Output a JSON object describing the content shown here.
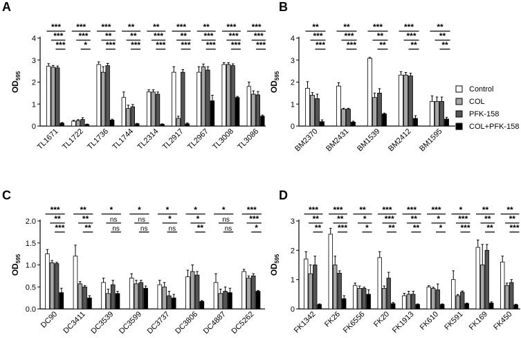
{
  "legend": {
    "colors": [
      "#ffffff",
      "#a6a6a6",
      "#555555",
      "#000000"
    ],
    "labels": [
      "Control",
      "COL",
      "PFK-158",
      "COL+PFK-158"
    ]
  },
  "chart_data": [
    {
      "panel": "A",
      "type": "bar",
      "ylabel": "OD595",
      "ylim": [
        0,
        4
      ],
      "yticks": [
        0,
        1,
        2,
        3,
        4
      ],
      "categories": [
        "TL1671",
        "TL1722",
        "TL1736",
        "TL1744",
        "TL2314",
        "TL2917",
        "TL2967",
        "TL3008",
        "TL3086"
      ],
      "series": [
        {
          "name": "Control",
          "values": [
            2.72,
            0.22,
            2.8,
            1.3,
            1.55,
            2.45,
            2.45,
            2.8,
            1.8
          ],
          "errors": [
            0.12,
            0.04,
            0.12,
            0.25,
            0.1,
            0.25,
            0.25,
            0.08,
            0.2
          ]
        },
        {
          "name": "COL",
          "values": [
            2.68,
            0.25,
            2.45,
            0.8,
            1.55,
            0.35,
            2.7,
            2.8,
            1.45
          ],
          "errors": [
            0.08,
            0.04,
            0.25,
            0.15,
            0.1,
            0.1,
            0.12,
            0.08,
            0.15
          ]
        },
        {
          "name": "PFK-158",
          "values": [
            2.65,
            0.3,
            2.75,
            0.88,
            1.45,
            2.45,
            2.55,
            2.75,
            1.42
          ],
          "errors": [
            0.08,
            0.08,
            0.1,
            0.1,
            0.1,
            0.12,
            0.15,
            0.08,
            0.15
          ]
        },
        {
          "name": "COL+PFK-158",
          "values": [
            0.13,
            0.07,
            0.27,
            0.1,
            0.08,
            0.1,
            1.15,
            1.3,
            0.45
          ],
          "errors": [
            0.03,
            0.02,
            0.04,
            0.02,
            0.02,
            0.04,
            0.25,
            0.05,
            0.05
          ]
        }
      ],
      "sig": [
        [
          "***",
          "***",
          "***"
        ],
        [
          "***",
          "***",
          "*"
        ],
        [
          "***",
          "**",
          "***"
        ],
        [
          "**",
          "**",
          "***"
        ],
        [
          "**",
          "***",
          "***"
        ],
        [
          "***",
          "**",
          "***"
        ],
        [
          "**",
          "***",
          "***"
        ],
        [
          "***",
          "***",
          "***"
        ],
        [
          "***",
          "***",
          "***"
        ]
      ]
    },
    {
      "panel": "B",
      "type": "bar",
      "ylabel": "OD595",
      "ylim": [
        0,
        4
      ],
      "yticks": [
        0,
        1,
        2,
        3,
        4
      ],
      "categories": [
        "BM2370",
        "BM2431",
        "BM1539",
        "BM2412",
        "BM1595"
      ],
      "series": [
        {
          "name": "Control",
          "values": [
            1.72,
            1.82,
            3.08,
            2.32,
            1.12
          ],
          "errors": [
            0.3,
            0.15,
            0.04,
            0.15,
            0.25
          ]
        },
        {
          "name": "COL",
          "values": [
            1.4,
            0.77,
            1.3,
            2.32,
            1.12
          ],
          "errors": [
            0.12,
            0.04,
            0.2,
            0.12,
            0.2
          ]
        },
        {
          "name": "PFK-158",
          "values": [
            1.25,
            0.77,
            1.5,
            2.28,
            1.12
          ],
          "errors": [
            0.2,
            0.04,
            0.2,
            0.12,
            0.2
          ]
        },
        {
          "name": "COL+PFK-158",
          "values": [
            0.2,
            0.18,
            0.55,
            0.35,
            0.32
          ],
          "errors": [
            0.08,
            0.04,
            0.04,
            0.12,
            0.08
          ]
        }
      ],
      "sig": [
        [
          "**",
          "***",
          "***"
        ],
        [
          "**",
          "***",
          "***"
        ],
        [
          "***",
          "**",
          "**"
        ],
        [
          "***",
          "***",
          "**"
        ],
        [
          "**",
          "**",
          "**"
        ]
      ]
    },
    {
      "panel": "C",
      "type": "bar",
      "ylabel": "OD595",
      "ylim": [
        0,
        2
      ],
      "yticks": [
        0.0,
        0.5,
        1.0,
        1.5,
        2.0
      ],
      "categories": [
        "DC90",
        "DC3411",
        "DC3539",
        "DC3599",
        "DC3737",
        "DC3806",
        "DC4887",
        "DC5262"
      ],
      "series": [
        {
          "name": "Control",
          "values": [
            1.25,
            1.2,
            0.6,
            0.7,
            0.55,
            0.73,
            0.6,
            0.85
          ],
          "errors": [
            0.1,
            0.25,
            0.1,
            0.1,
            0.1,
            0.15,
            0.2,
            0.05
          ]
        },
        {
          "name": "COL",
          "values": [
            1.05,
            0.57,
            0.35,
            0.57,
            0.5,
            0.85,
            0.35,
            0.7
          ],
          "errors": [
            0.05,
            0.05,
            0.1,
            0.08,
            0.1,
            0.15,
            0.1,
            0.05
          ]
        },
        {
          "name": "PFK-158",
          "values": [
            1.03,
            0.5,
            0.55,
            0.6,
            0.3,
            0.77,
            0.4,
            0.75
          ],
          "errors": [
            0.03,
            0.03,
            0.1,
            0.05,
            0.1,
            0.08,
            0.1,
            0.05
          ]
        },
        {
          "name": "COL+PFK-158",
          "values": [
            0.37,
            0.25,
            0.35,
            0.47,
            0.25,
            0.17,
            0.37,
            0.4
          ],
          "errors": [
            0.1,
            0.05,
            0.05,
            0.05,
            0.08,
            0.02,
            0.1,
            0.02
          ]
        }
      ],
      "sig": [
        [
          "***",
          "**",
          "***"
        ],
        [
          "**",
          "**",
          "**"
        ],
        [
          "*",
          "ns",
          "ns"
        ],
        [
          "*",
          "ns",
          "ns"
        ],
        [
          "*",
          "*",
          "ns"
        ],
        [
          "*",
          "*",
          "**"
        ],
        [
          "*",
          "ns",
          "ns"
        ],
        [
          "***",
          "***",
          "*"
        ]
      ]
    },
    {
      "panel": "D",
      "type": "bar",
      "ylabel": "OD595",
      "ylim": [
        0,
        3
      ],
      "yticks": [
        0,
        1,
        2,
        3
      ],
      "categories": [
        "FK1342",
        "FK26",
        "FK6556",
        "FK20",
        "FK1913",
        "FK610",
        "FK591",
        "FK169",
        "FK450"
      ],
      "series": [
        {
          "name": "Control",
          "values": [
            1.7,
            2.55,
            0.8,
            1.75,
            0.45,
            0.75,
            1.0,
            2.1,
            1.6
          ],
          "errors": [
            0.25,
            0.2,
            0.08,
            0.2,
            0.08,
            0.04,
            0.3,
            0.25,
            0.2
          ]
        },
        {
          "name": "COL",
          "values": [
            1.2,
            1.5,
            0.7,
            0.7,
            0.5,
            0.7,
            0.45,
            1.5,
            0.8
          ],
          "errors": [
            0.3,
            0.3,
            0.08,
            0.08,
            0.1,
            0.04,
            0.04,
            0.7,
            0.08
          ]
        },
        {
          "name": "PFK-158",
          "values": [
            1.5,
            1.22,
            0.7,
            1.05,
            0.5,
            0.65,
            0.57,
            2.0,
            0.9
          ],
          "errors": [
            0.3,
            0.08,
            0.04,
            0.2,
            0.1,
            0.2,
            0.04,
            0.2,
            0.1
          ]
        },
        {
          "name": "COL+PFK-158",
          "values": [
            0.15,
            0.35,
            0.5,
            0.18,
            0.15,
            0.15,
            0.18,
            0.2,
            0.14
          ],
          "errors": [
            0.02,
            0.1,
            0.15,
            0.04,
            0.02,
            0.02,
            0.02,
            0.04,
            0.02
          ]
        }
      ],
      "sig": [
        [
          "***",
          "**",
          "**"
        ],
        [
          "***",
          "**",
          "***"
        ],
        [
          "**",
          "*",
          "*"
        ],
        [
          "***",
          "***",
          "**"
        ],
        [
          "***",
          "**",
          "**"
        ],
        [
          "***",
          "*",
          "*"
        ],
        [
          "*",
          "***",
          "***"
        ],
        [
          "**",
          "**",
          "**"
        ],
        [
          "**",
          "**",
          "***"
        ]
      ]
    }
  ]
}
